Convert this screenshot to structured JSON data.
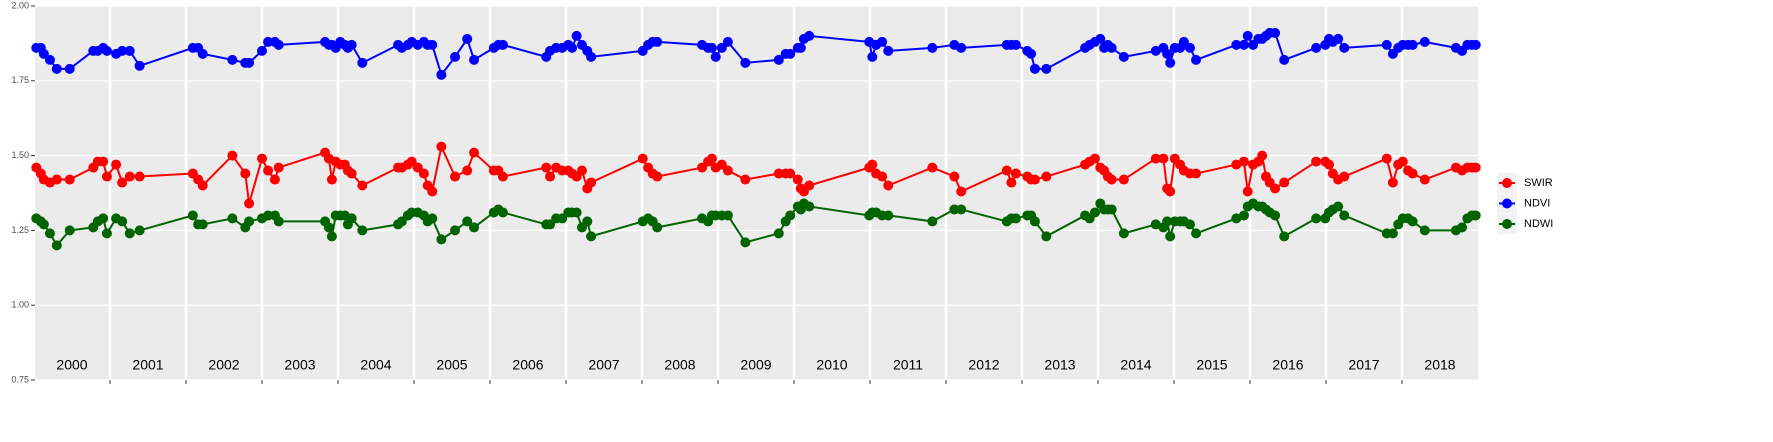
{
  "chart_data": {
    "type": "line",
    "x": [
      2000.03,
      2000.09,
      2000.13,
      2000.21,
      2000.3,
      2000.47,
      2000.78,
      2000.84,
      2000.91,
      2000.96,
      2001.08,
      2001.16,
      2001.26,
      2001.39,
      2002.09,
      2002.16,
      2002.22,
      2002.61,
      2002.78,
      2002.83,
      2003.0,
      2003.08,
      2003.17,
      2003.22,
      2003.83,
      2003.88,
      2003.92,
      2003.97,
      2004.03,
      2004.09,
      2004.13,
      2004.18,
      2004.32,
      2004.79,
      2004.84,
      2004.92,
      2004.97,
      2005.05,
      2005.13,
      2005.18,
      2005.24,
      2005.36,
      2005.54,
      2005.7,
      2005.79,
      2006.05,
      2006.11,
      2006.17,
      2006.74,
      2006.79,
      2006.87,
      2006.95,
      2007.03,
      2007.08,
      2007.14,
      2007.21,
      2007.28,
      2007.33,
      2008.01,
      2008.08,
      2008.14,
      2008.2,
      2008.79,
      2008.87,
      2008.92,
      2008.97,
      2009.05,
      2009.13,
      2009.36,
      2009.8,
      2009.89,
      2009.95,
      2010.05,
      2010.09,
      2010.13,
      2010.2,
      2010.99,
      2011.03,
      2011.08,
      2011.16,
      2011.24,
      2011.82,
      2012.11,
      2012.2,
      2012.8,
      2012.86,
      2012.92,
      2013.07,
      2013.12,
      2013.17,
      2013.32,
      2013.83,
      2013.89,
      2013.96,
      2014.03,
      2014.08,
      2014.13,
      2014.18,
      2014.34,
      2014.76,
      2014.86,
      2014.91,
      2014.95,
      2015.01,
      2015.08,
      2015.13,
      2015.21,
      2015.29,
      2015.82,
      2015.92,
      2015.97,
      2016.04,
      2016.11,
      2016.16,
      2016.21,
      2016.26,
      2016.33,
      2016.45,
      2016.87,
      2016.99,
      2017.04,
      2017.09,
      2017.16,
      2017.24,
      2017.8,
      2017.88,
      2017.95,
      2018.01,
      2018.08,
      2018.14,
      2018.3,
      2018.71,
      2018.79,
      2018.86,
      2018.92,
      2018.97
    ],
    "series": [
      {
        "name": "SWIR",
        "color": "#ff0000",
        "values": [
          1.46,
          1.44,
          1.42,
          1.41,
          1.42,
          1.42,
          1.46,
          1.48,
          1.48,
          1.43,
          1.47,
          1.41,
          1.43,
          1.43,
          1.44,
          1.42,
          1.4,
          1.5,
          1.44,
          1.34,
          1.49,
          1.45,
          1.42,
          1.46,
          1.51,
          1.49,
          1.42,
          1.48,
          1.47,
          1.47,
          1.45,
          1.44,
          1.4,
          1.46,
          1.46,
          1.47,
          1.48,
          1.46,
          1.44,
          1.4,
          1.38,
          1.53,
          1.43,
          1.45,
          1.51,
          1.45,
          1.45,
          1.43,
          1.46,
          1.43,
          1.46,
          1.45,
          1.45,
          1.44,
          1.43,
          1.45,
          1.39,
          1.41,
          1.49,
          1.46,
          1.44,
          1.43,
          1.46,
          1.48,
          1.49,
          1.46,
          1.47,
          1.45,
          1.42,
          1.44,
          1.44,
          1.44,
          1.42,
          1.39,
          1.38,
          1.4,
          1.46,
          1.47,
          1.44,
          1.43,
          1.4,
          1.46,
          1.43,
          1.38,
          1.45,
          1.41,
          1.44,
          1.43,
          1.42,
          1.42,
          1.43,
          1.47,
          1.48,
          1.49,
          1.46,
          1.45,
          1.43,
          1.42,
          1.42,
          1.49,
          1.49,
          1.39,
          1.38,
          1.49,
          1.47,
          1.45,
          1.44,
          1.44,
          1.47,
          1.48,
          1.38,
          1.47,
          1.48,
          1.5,
          1.43,
          1.41,
          1.39,
          1.41,
          1.48,
          1.48,
          1.47,
          1.44,
          1.42,
          1.43,
          1.49,
          1.41,
          1.47,
          1.48,
          1.45,
          1.44,
          1.42,
          1.46,
          1.45,
          1.46,
          1.46,
          1.46
        ]
      },
      {
        "name": "NDVI",
        "color": "#0000ff",
        "values": [
          1.86,
          1.86,
          1.84,
          1.82,
          1.79,
          1.79,
          1.85,
          1.85,
          1.86,
          1.85,
          1.84,
          1.85,
          1.85,
          1.8,
          1.86,
          1.86,
          1.84,
          1.82,
          1.81,
          1.81,
          1.85,
          1.88,
          1.88,
          1.87,
          1.88,
          1.87,
          1.87,
          1.86,
          1.88,
          1.87,
          1.86,
          1.87,
          1.81,
          1.87,
          1.86,
          1.87,
          1.88,
          1.87,
          1.88,
          1.87,
          1.87,
          1.77,
          1.83,
          1.89,
          1.82,
          1.86,
          1.87,
          1.87,
          1.83,
          1.85,
          1.86,
          1.86,
          1.87,
          1.86,
          1.9,
          1.87,
          1.85,
          1.83,
          1.85,
          1.87,
          1.88,
          1.88,
          1.87,
          1.86,
          1.86,
          1.83,
          1.86,
          1.88,
          1.81,
          1.82,
          1.84,
          1.84,
          1.86,
          1.86,
          1.89,
          1.9,
          1.88,
          1.83,
          1.87,
          1.88,
          1.85,
          1.86,
          1.87,
          1.86,
          1.87,
          1.87,
          1.87,
          1.85,
          1.84,
          1.79,
          1.79,
          1.86,
          1.87,
          1.88,
          1.89,
          1.86,
          1.87,
          1.86,
          1.83,
          1.85,
          1.86,
          1.84,
          1.81,
          1.86,
          1.86,
          1.88,
          1.86,
          1.82,
          1.87,
          1.87,
          1.9,
          1.87,
          1.89,
          1.89,
          1.9,
          1.91,
          1.91,
          1.82,
          1.86,
          1.87,
          1.89,
          1.88,
          1.89,
          1.86,
          1.87,
          1.84,
          1.86,
          1.87,
          1.87,
          1.87,
          1.88,
          1.86,
          1.85,
          1.87,
          1.87,
          1.87
        ]
      },
      {
        "name": "NDWI",
        "color": "#006400",
        "values": [
          1.29,
          1.28,
          1.27,
          1.24,
          1.2,
          1.25,
          1.26,
          1.28,
          1.29,
          1.24,
          1.29,
          1.28,
          1.24,
          1.25,
          1.3,
          1.27,
          1.27,
          1.29,
          1.26,
          1.28,
          1.29,
          1.3,
          1.3,
          1.28,
          1.28,
          1.26,
          1.23,
          1.3,
          1.3,
          1.3,
          1.27,
          1.29,
          1.25,
          1.27,
          1.28,
          1.3,
          1.31,
          1.31,
          1.3,
          1.28,
          1.29,
          1.22,
          1.25,
          1.28,
          1.26,
          1.31,
          1.32,
          1.31,
          1.27,
          1.27,
          1.29,
          1.29,
          1.31,
          1.31,
          1.31,
          1.26,
          1.28,
          1.23,
          1.28,
          1.29,
          1.28,
          1.26,
          1.29,
          1.28,
          1.3,
          1.3,
          1.3,
          1.3,
          1.21,
          1.24,
          1.28,
          1.3,
          1.33,
          1.32,
          1.34,
          1.33,
          1.3,
          1.31,
          1.31,
          1.3,
          1.3,
          1.28,
          1.32,
          1.32,
          1.28,
          1.29,
          1.29,
          1.3,
          1.3,
          1.28,
          1.23,
          1.3,
          1.29,
          1.31,
          1.34,
          1.32,
          1.32,
          1.32,
          1.24,
          1.27,
          1.26,
          1.28,
          1.23,
          1.28,
          1.28,
          1.28,
          1.27,
          1.24,
          1.29,
          1.3,
          1.33,
          1.34,
          1.33,
          1.33,
          1.32,
          1.31,
          1.3,
          1.23,
          1.29,
          1.29,
          1.31,
          1.32,
          1.33,
          1.3,
          1.24,
          1.24,
          1.27,
          1.29,
          1.29,
          1.28,
          1.25,
          1.25,
          1.26,
          1.29,
          1.3,
          1.3
        ]
      }
    ],
    "xlim": [
      2000,
      2019
    ],
    "xticks": [
      2001,
      2002,
      2003,
      2004,
      2005,
      2006,
      2007,
      2008,
      2009,
      2010,
      2011,
      2012,
      2013,
      2014,
      2015,
      2016,
      2017,
      2018
    ],
    "year_labels": [
      2000,
      2001,
      2002,
      2003,
      2004,
      2005,
      2006,
      2007,
      2008,
      2009,
      2010,
      2011,
      2012,
      2013,
      2014,
      2015,
      2016,
      2017,
      2018
    ],
    "ylim": [
      0.75,
      2.0
    ],
    "yticks": [
      {
        "value": 0.75,
        "label": "0.75"
      },
      {
        "value": 1.0,
        "label": "1.00"
      },
      {
        "value": 1.25,
        "label": "1.25"
      },
      {
        "value": 1.5,
        "label": "1.50"
      },
      {
        "value": 1.75,
        "label": "1.75"
      },
      {
        "value": 2.0,
        "label": "2.00"
      }
    ],
    "grid": true,
    "legend": "right"
  }
}
